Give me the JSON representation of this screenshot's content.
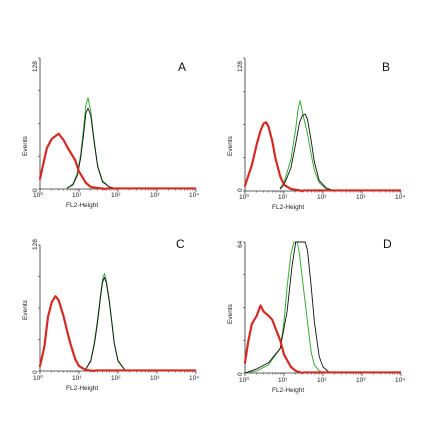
{
  "chart_data": [
    {
      "type": "line",
      "panel_label": "A",
      "xlabel": "FL2-Height",
      "ylabel": "Events",
      "xscale": "log",
      "xlim": [
        1,
        10000
      ],
      "ylim": [
        0,
        128
      ],
      "x_tick_labels": [
        "10⁰",
        "10¹",
        "10²",
        "10³",
        "10⁴"
      ],
      "y_tick_labels": [
        "0",
        "128"
      ],
      "series_colors": [
        "#d42a24",
        "#111111",
        "#3aaa35"
      ],
      "series": [
        {
          "x": [
            1,
            1.5,
            2,
            3,
            4,
            5,
            6,
            8,
            10,
            15,
            20,
            30,
            50
          ],
          "values": [
            10,
            40,
            49,
            54,
            48,
            41,
            36,
            28,
            17,
            6,
            2,
            1,
            0
          ]
        },
        {
          "x": [
            5,
            7,
            9,
            11,
            13,
            15,
            17,
            20,
            24,
            30,
            40,
            60,
            100
          ],
          "values": [
            1,
            4,
            13,
            30,
            52,
            74,
            79,
            72,
            48,
            22,
            7,
            2,
            0
          ]
        },
        {
          "x": [
            5,
            7,
            9,
            11,
            13,
            15,
            17,
            20,
            24,
            30,
            40,
            60,
            100
          ],
          "values": [
            1,
            5,
            15,
            33,
            58,
            82,
            89,
            76,
            50,
            23,
            8,
            2,
            0
          ]
        }
      ]
    },
    {
      "type": "line",
      "panel_label": "B",
      "xlabel": "FL2-Height",
      "ylabel": "Events",
      "xscale": "log",
      "xlim": [
        1,
        10000
      ],
      "ylim": [
        0,
        128
      ],
      "x_tick_labels": [
        "10⁰",
        "10¹",
        "10²",
        "10³",
        "10⁴"
      ],
      "y_tick_labels": [
        "0",
        "128"
      ],
      "series_colors": [
        "#d42a24",
        "#111111",
        "#3aaa35"
      ],
      "series": [
        {
          "x": [
            1,
            1.5,
            2,
            2.5,
            3,
            3.5,
            4,
            5,
            6,
            8,
            10,
            15,
            30
          ],
          "values": [
            5,
            25,
            45,
            58,
            65,
            66,
            62,
            48,
            32,
            14,
            6,
            2,
            0
          ]
        },
        {
          "x": [
            8,
            10,
            15,
            20,
            25,
            30,
            35,
            40,
            50,
            60,
            80,
            120,
            200
          ],
          "values": [
            2,
            6,
            22,
            46,
            66,
            73,
            74,
            69,
            48,
            28,
            10,
            3,
            0
          ]
        },
        {
          "x": [
            8,
            10,
            15,
            20,
            23,
            26,
            30,
            40,
            50,
            60,
            80,
            120,
            200
          ],
          "values": [
            3,
            8,
            30,
            60,
            79,
            87,
            75,
            55,
            35,
            20,
            8,
            2,
            0
          ]
        }
      ]
    },
    {
      "type": "line",
      "panel_label": "C",
      "xlabel": "FL2-Height",
      "ylabel": "Events",
      "xscale": "log",
      "xlim": [
        1,
        10000
      ],
      "ylim": [
        0,
        128
      ],
      "x_tick_labels": [
        "10⁰",
        "10¹",
        "10²",
        "10³",
        "10⁴"
      ],
      "y_tick_labels": [
        "0",
        "128"
      ],
      "series_colors": [
        "#d42a24",
        "#111111",
        "#3aaa35"
      ],
      "series": [
        {
          "x": [
            1,
            1.3,
            1.6,
            2,
            2.5,
            3,
            4,
            5,
            6,
            8,
            10,
            15,
            25
          ],
          "values": [
            5,
            25,
            55,
            70,
            76,
            72,
            56,
            40,
            28,
            12,
            5,
            1,
            0
          ]
        },
        {
          "x": [
            15,
            20,
            25,
            30,
            35,
            40,
            45,
            50,
            60,
            70,
            80,
            100,
            150
          ],
          "values": [
            2,
            10,
            28,
            50,
            72,
            90,
            95,
            90,
            70,
            48,
            28,
            10,
            1
          ]
        },
        {
          "x": [
            15,
            20,
            25,
            30,
            35,
            40,
            45,
            50,
            60,
            70,
            80,
            100,
            150
          ],
          "values": [
            2,
            11,
            30,
            53,
            75,
            93,
            99,
            92,
            72,
            49,
            29,
            11,
            1
          ]
        }
      ]
    },
    {
      "type": "line",
      "panel_label": "D",
      "xlabel": "FL2-Height",
      "ylabel": "Events",
      "xscale": "log",
      "xlim": [
        1,
        10000
      ],
      "ylim": [
        0,
        64
      ],
      "x_tick_labels": [
        "10⁰",
        "10¹",
        "10²",
        "10³",
        "10⁴"
      ],
      "y_tick_labels": [
        "0",
        "64"
      ],
      "series_colors": [
        "#d42a24",
        "#111111",
        "#3aaa35"
      ],
      "series": [
        {
          "x": [
            1,
            1.2,
            1.5,
            2,
            2.5,
            3,
            4,
            5,
            6,
            8,
            10,
            15,
            20,
            30
          ],
          "values": [
            5,
            15,
            24,
            28,
            33,
            30,
            28,
            26,
            22,
            16,
            9,
            3,
            1,
            0
          ]
        },
        {
          "x": [
            1,
            2,
            4,
            8,
            12,
            16,
            20,
            25,
            30,
            35,
            40,
            50,
            60,
            80,
            100,
            150
          ],
          "values": [
            0,
            2,
            5,
            12,
            30,
            52,
            64,
            64,
            64,
            64,
            60,
            42,
            25,
            8,
            3,
            0
          ]
        },
        {
          "x": [
            1,
            2,
            4,
            8,
            10,
            12,
            15,
            18,
            22,
            25,
            30,
            40,
            50,
            60,
            80,
            100
          ],
          "values": [
            0,
            1,
            4,
            12,
            25,
            42,
            58,
            64,
            64,
            58,
            45,
            25,
            10,
            4,
            1,
            0
          ]
        }
      ]
    }
  ]
}
